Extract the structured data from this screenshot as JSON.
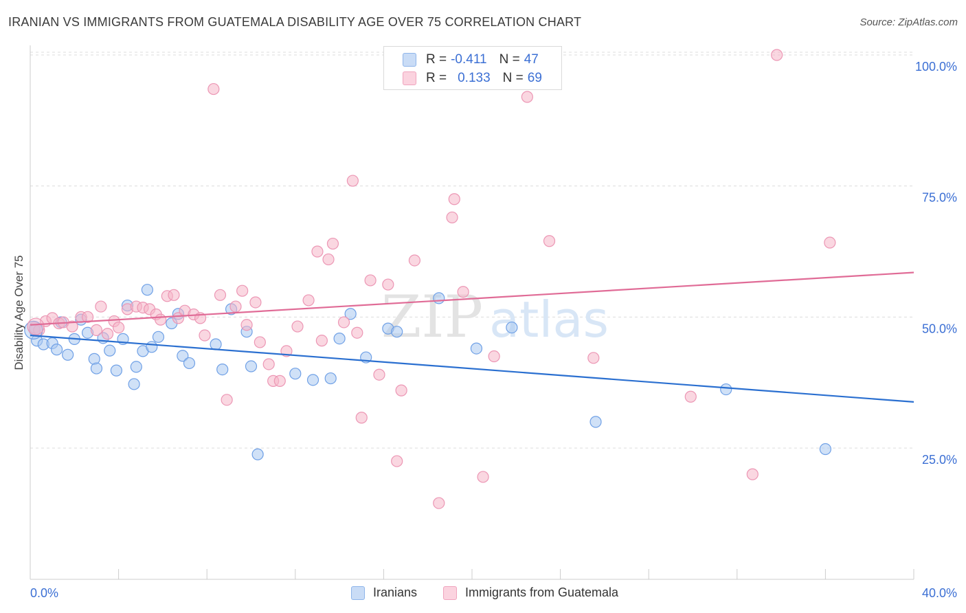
{
  "header": {
    "title": "IRANIAN VS IMMIGRANTS FROM GUATEMALA DISABILITY AGE OVER 75 CORRELATION CHART",
    "source": "Source: ZipAtlas.com"
  },
  "watermark": {
    "bold": "ZIP",
    "light": "atlas"
  },
  "legend_top": {
    "rows": [
      {
        "r_label": "R =",
        "r_value": "-0.411",
        "n_label": "N =",
        "n_value": "47",
        "color": "#aac8f0"
      },
      {
        "r_label": "R =",
        "r_value": "0.133",
        "n_label": "N =",
        "n_value": "69",
        "color": "#f5b6c9"
      }
    ]
  },
  "legend_bottom": {
    "items": [
      {
        "label": "Iranians",
        "color": "#aac8f0"
      },
      {
        "label": "Immigrants from Guatemala",
        "color": "#f5b6c9"
      }
    ]
  },
  "chart_data": {
    "type": "scatter",
    "title": "IRANIAN VS IMMIGRANTS FROM GUATEMALA DISABILITY AGE OVER 75 CORRELATION CHART",
    "xlabel": "",
    "ylabel": "Disability Age Over 75",
    "xlim": [
      0,
      40
    ],
    "ylim": [
      0,
      105
    ],
    "x_tick_labels": [
      "0.0%",
      "40.0%"
    ],
    "y_ticks": [
      25,
      50,
      75,
      100
    ],
    "y_tick_labels": [
      "25.0%",
      "50.0%",
      "75.0%",
      "100.0%"
    ],
    "grid": true,
    "legend_position": "top-center",
    "series": [
      {
        "name": "Iranians",
        "color": "#6fa0e6",
        "fill": "#aac8f0",
        "trend": {
          "x": [
            0,
            40
          ],
          "y": [
            46.5,
            33.8
          ],
          "color": "#2a6fd0"
        },
        "points": [
          [
            0.2,
            47.5
          ],
          [
            0.3,
            45.5
          ],
          [
            0.6,
            44.8
          ],
          [
            1.0,
            45.0
          ],
          [
            1.2,
            43.8
          ],
          [
            1.4,
            49.0
          ],
          [
            1.7,
            42.8
          ],
          [
            2.0,
            45.8
          ],
          [
            2.3,
            49.5
          ],
          [
            2.6,
            47.0
          ],
          [
            2.9,
            42.0
          ],
          [
            3.0,
            40.2
          ],
          [
            3.3,
            46.0
          ],
          [
            3.6,
            43.6
          ],
          [
            3.9,
            39.8
          ],
          [
            4.2,
            45.8
          ],
          [
            4.4,
            52.2
          ],
          [
            4.7,
            37.2
          ],
          [
            4.8,
            40.5
          ],
          [
            5.1,
            43.5
          ],
          [
            5.3,
            55.2
          ],
          [
            5.5,
            44.3
          ],
          [
            5.8,
            46.2
          ],
          [
            6.4,
            48.8
          ],
          [
            6.7,
            50.6
          ],
          [
            6.9,
            42.6
          ],
          [
            7.2,
            41.2
          ],
          [
            8.4,
            44.8
          ],
          [
            8.7,
            40.0
          ],
          [
            9.1,
            51.5
          ],
          [
            9.8,
            47.2
          ],
          [
            10.0,
            40.6
          ],
          [
            10.3,
            23.8
          ],
          [
            12.0,
            39.2
          ],
          [
            12.8,
            38.0
          ],
          [
            13.6,
            38.3
          ],
          [
            14.0,
            45.9
          ],
          [
            14.5,
            50.6
          ],
          [
            15.2,
            42.3
          ],
          [
            16.2,
            47.8
          ],
          [
            16.6,
            47.2
          ],
          [
            18.5,
            53.6
          ],
          [
            20.2,
            44.0
          ],
          [
            21.8,
            48.0
          ],
          [
            25.6,
            30.0
          ],
          [
            31.5,
            36.2
          ],
          [
            36.0,
            24.8
          ]
        ]
      },
      {
        "name": "Immigrants from Guatemala",
        "color": "#ec96b4",
        "fill": "#f5b6c9",
        "trend": {
          "x": [
            0,
            40
          ],
          "y": [
            48.5,
            58.5
          ],
          "color": "#e06b96"
        },
        "points": [
          [
            0.2,
            48.0
          ],
          [
            0.4,
            47.5
          ],
          [
            0.7,
            49.2
          ],
          [
            1.0,
            49.8
          ],
          [
            1.3,
            48.8
          ],
          [
            1.5,
            49.0
          ],
          [
            1.9,
            48.2
          ],
          [
            2.3,
            50.0
          ],
          [
            2.6,
            50.0
          ],
          [
            3.0,
            47.5
          ],
          [
            3.2,
            52.0
          ],
          [
            3.5,
            46.8
          ],
          [
            3.8,
            49.2
          ],
          [
            4.0,
            48.0
          ],
          [
            4.4,
            51.5
          ],
          [
            4.8,
            52.0
          ],
          [
            5.1,
            51.8
          ],
          [
            5.4,
            51.5
          ],
          [
            5.7,
            50.5
          ],
          [
            5.9,
            49.5
          ],
          [
            6.2,
            54.0
          ],
          [
            6.5,
            54.2
          ],
          [
            6.7,
            49.8
          ],
          [
            7.0,
            51.2
          ],
          [
            7.4,
            50.5
          ],
          [
            7.7,
            49.8
          ],
          [
            7.9,
            46.5
          ],
          [
            8.3,
            93.5
          ],
          [
            8.6,
            54.2
          ],
          [
            8.9,
            34.2
          ],
          [
            9.3,
            52.0
          ],
          [
            9.6,
            55.0
          ],
          [
            9.8,
            48.5
          ],
          [
            10.2,
            52.8
          ],
          [
            10.4,
            45.2
          ],
          [
            10.8,
            41.0
          ],
          [
            11.0,
            37.8
          ],
          [
            11.3,
            37.8
          ],
          [
            11.6,
            43.5
          ],
          [
            12.1,
            48.2
          ],
          [
            12.6,
            53.2
          ],
          [
            13.0,
            62.5
          ],
          [
            13.2,
            45.5
          ],
          [
            13.5,
            61.0
          ],
          [
            13.7,
            64.0
          ],
          [
            14.2,
            49.0
          ],
          [
            14.6,
            76.0
          ],
          [
            14.8,
            47.0
          ],
          [
            15.0,
            30.8
          ],
          [
            15.4,
            57.0
          ],
          [
            15.8,
            39.0
          ],
          [
            16.2,
            56.2
          ],
          [
            16.6,
            22.5
          ],
          [
            16.8,
            36.0
          ],
          [
            17.4,
            60.8
          ],
          [
            18.5,
            14.5
          ],
          [
            19.1,
            69.0
          ],
          [
            19.2,
            72.5
          ],
          [
            19.6,
            54.8
          ],
          [
            20.5,
            19.5
          ],
          [
            21.0,
            42.5
          ],
          [
            21.5,
            100.0
          ],
          [
            22.5,
            92.0
          ],
          [
            23.5,
            64.5
          ],
          [
            25.5,
            42.2
          ],
          [
            29.9,
            34.8
          ],
          [
            32.7,
            20.0
          ],
          [
            33.8,
            100.0
          ],
          [
            36.2,
            64.2
          ]
        ]
      }
    ]
  }
}
